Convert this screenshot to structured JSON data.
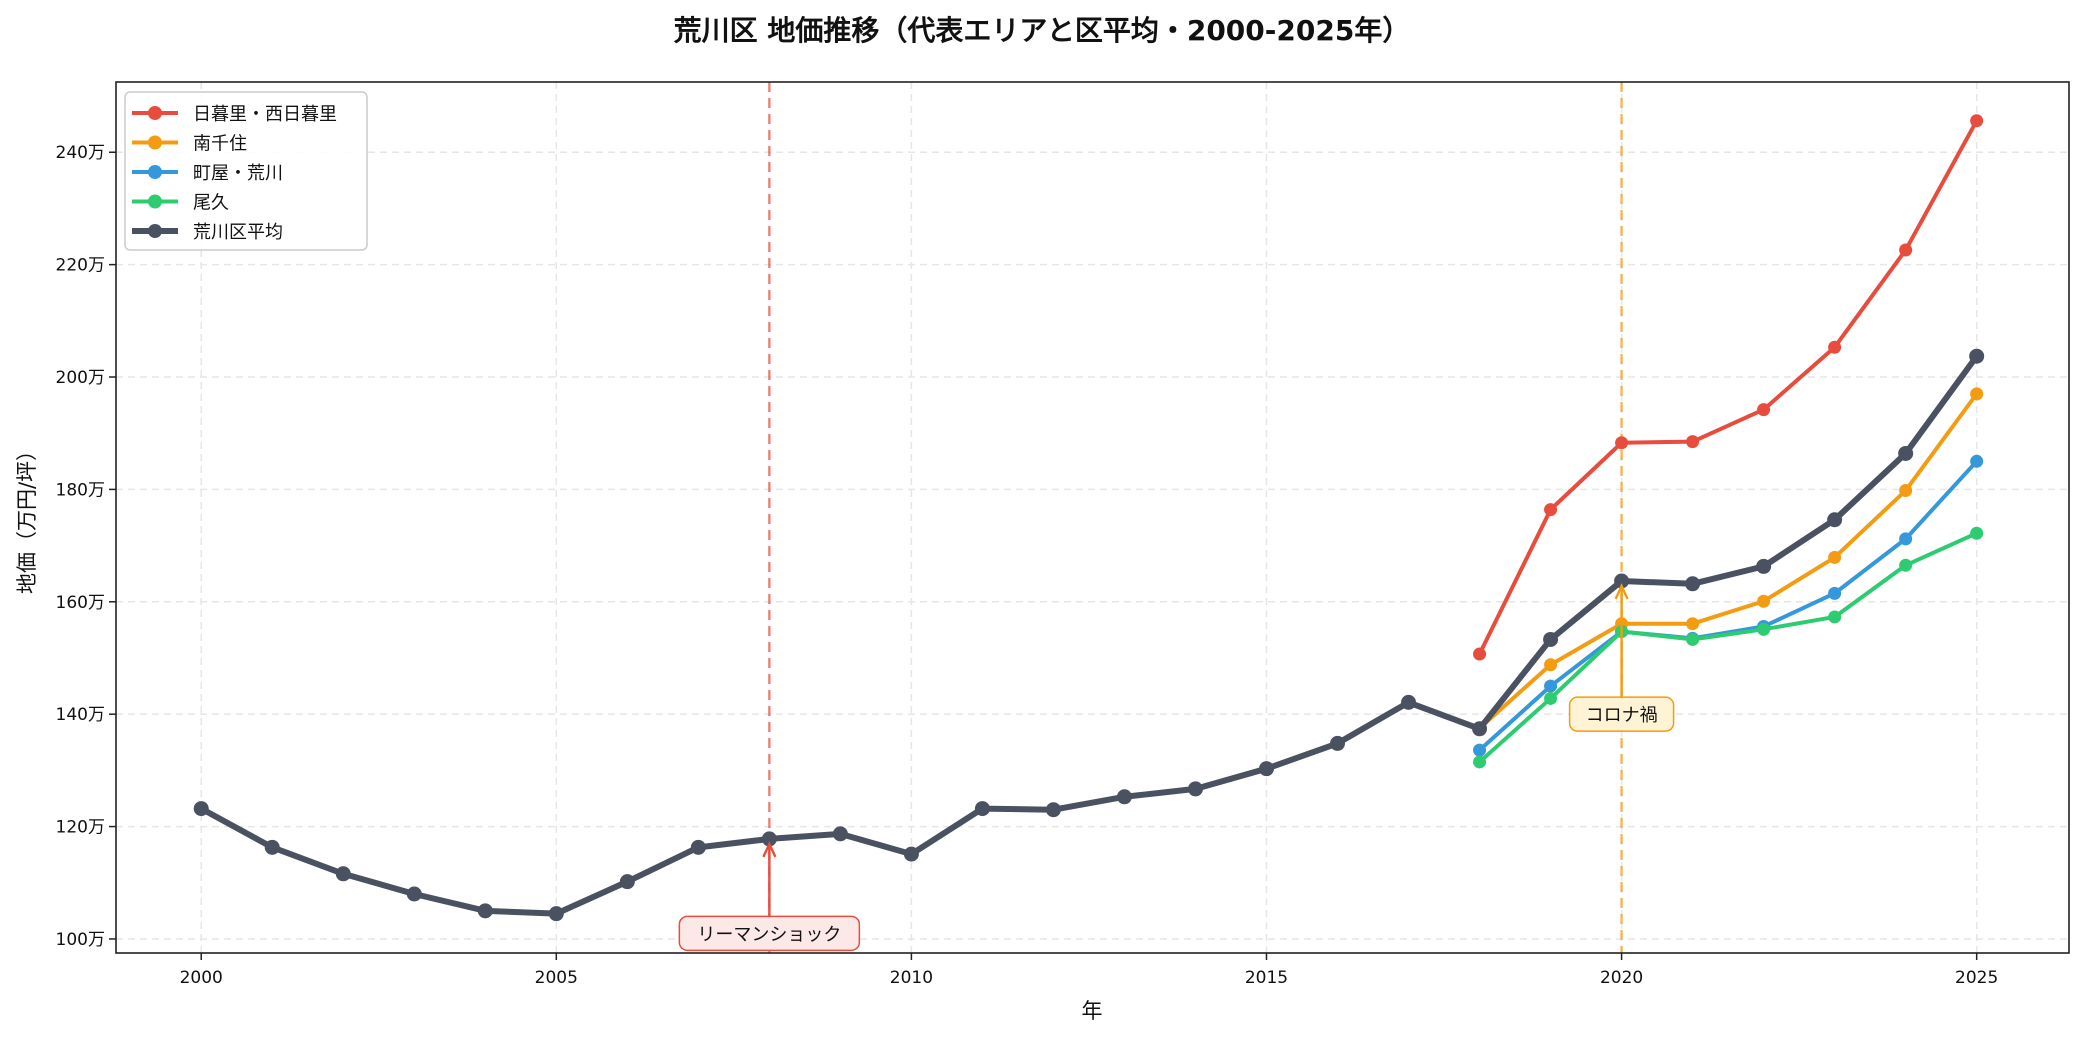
{
  "chart_data": {
    "type": "line",
    "title": "荒川区 地価推移（代表エリアと区平均・2000-2025年）",
    "xlabel": "年",
    "ylabel": "地価（万円/坪）",
    "xlim": [
      1998.8,
      2026.3
    ],
    "ylim": [
      97.5,
      252.5
    ],
    "xticks": [
      2000,
      2005,
      2010,
      2015,
      2020,
      2025
    ],
    "yticks": [
      100,
      120,
      140,
      160,
      180,
      200,
      220,
      240
    ],
    "ytick_labels": [
      "100万",
      "120万",
      "140万",
      "160万",
      "180万",
      "200万",
      "220万",
      "240万"
    ],
    "grid": true,
    "legend_position": "top-left",
    "series": [
      {
        "name": "日暮里・西日暮里",
        "color": "#e74c3c",
        "x": [
          2018,
          2019,
          2020,
          2021,
          2022,
          2023,
          2024,
          2025
        ],
        "values": [
          150.7,
          176.4,
          188.3,
          188.5,
          194.2,
          205.3,
          222.6,
          245.6
        ]
      },
      {
        "name": "南千住",
        "color": "#f39c12",
        "x": [
          2018,
          2019,
          2020,
          2021,
          2022,
          2023,
          2024,
          2025
        ],
        "values": [
          137.5,
          148.8,
          156.1,
          156.1,
          160.1,
          167.9,
          179.8,
          197.0
        ]
      },
      {
        "name": "町屋・荒川",
        "color": "#3498db",
        "x": [
          2018,
          2019,
          2020,
          2021,
          2022,
          2023,
          2024,
          2025
        ],
        "values": [
          133.6,
          145.0,
          154.7,
          153.5,
          155.6,
          161.5,
          171.2,
          185.0
        ]
      },
      {
        "name": "尾久",
        "color": "#2ecc71",
        "x": [
          2018,
          2019,
          2020,
          2021,
          2022,
          2023,
          2024,
          2025
        ],
        "values": [
          131.5,
          142.8,
          154.7,
          153.3,
          155.1,
          157.3,
          166.5,
          172.2
        ]
      },
      {
        "name": "荒川区平均",
        "color": "#4a5160",
        "x": [
          2000,
          2001,
          2002,
          2003,
          2004,
          2005,
          2006,
          2007,
          2008,
          2009,
          2010,
          2011,
          2012,
          2013,
          2014,
          2015,
          2016,
          2017,
          2018,
          2019,
          2020,
          2021,
          2022,
          2023,
          2024,
          2025
        ],
        "values": [
          123.2,
          116.3,
          111.6,
          108.0,
          105.0,
          104.5,
          110.2,
          116.3,
          117.8,
          118.7,
          115.1,
          123.2,
          123.0,
          125.3,
          126.7,
          130.3,
          134.8,
          142.1,
          137.4,
          153.3,
          163.7,
          163.2,
          166.3,
          174.6,
          186.4,
          203.7
        ]
      }
    ],
    "annotations": [
      {
        "text": "リーマンショック",
        "x": 2008,
        "y": 117.8,
        "text_y": 101,
        "color": "#e74c3c",
        "box_fill": "#fde8e8"
      },
      {
        "text": "コロナ禍",
        "x": 2020,
        "y": 163.7,
        "text_y": 140,
        "color": "#f39c12",
        "box_fill": "#fff3d6"
      }
    ]
  }
}
